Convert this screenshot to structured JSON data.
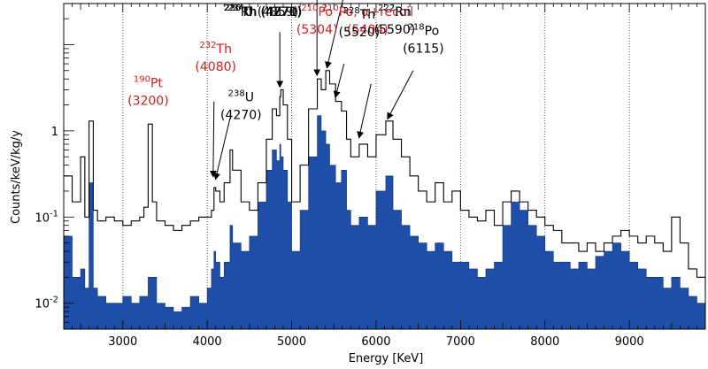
{
  "chart_data": {
    "type": "histogram",
    "xlabel": "Energy [KeV]",
    "ylabel": "Counts/keV/kg/y",
    "xlim": [
      2300,
      9900
    ],
    "ylim": [
      0.005,
      30
    ],
    "yscale": "log",
    "x_ticks": [
      3000,
      4000,
      5000,
      6000,
      7000,
      8000,
      9000
    ],
    "x_tick_labels": [
      "3000",
      "4000",
      "5000",
      "6000",
      "7000",
      "8000",
      "9000"
    ],
    "y_ticks": [
      {
        "value": 1,
        "base": "1",
        "exp": ""
      },
      {
        "value": 0.1,
        "base": "10",
        "exp": "-1"
      },
      {
        "value": 0.01,
        "base": "10",
        "exp": "-2"
      }
    ],
    "vertical_gridlines": [
      3000,
      4000,
      5000,
      6000,
      7000,
      8000,
      9000
    ],
    "colors": {
      "filled": "#1f4ea8",
      "outline": "#000000",
      "red_label": "#cc2222",
      "black_label": "#000000"
    },
    "series": [
      {
        "style": "outline",
        "points": [
          [
            2300,
            0.3
          ],
          [
            2400,
            0.15
          ],
          [
            2500,
            0.5
          ],
          [
            2550,
            0.1
          ],
          [
            2600,
            1.3
          ],
          [
            2650,
            0.12
          ],
          [
            2700,
            0.09
          ],
          [
            2800,
            0.1
          ],
          [
            2900,
            0.09
          ],
          [
            3000,
            0.08
          ],
          [
            3100,
            0.09
          ],
          [
            3200,
            0.1
          ],
          [
            3250,
            0.13
          ],
          [
            3300,
            1.2
          ],
          [
            3350,
            0.15
          ],
          [
            3400,
            0.09
          ],
          [
            3500,
            0.08
          ],
          [
            3600,
            0.07
          ],
          [
            3700,
            0.08
          ],
          [
            3800,
            0.09
          ],
          [
            3900,
            0.1
          ],
          [
            4000,
            0.1
          ],
          [
            4050,
            0.12
          ],
          [
            4080,
            0.22
          ],
          [
            4100,
            0.2
          ],
          [
            4150,
            0.15
          ],
          [
            4200,
            0.25
          ],
          [
            4270,
            0.6
          ],
          [
            4300,
            0.35
          ],
          [
            4400,
            0.15
          ],
          [
            4500,
            0.12
          ],
          [
            4600,
            0.25
          ],
          [
            4700,
            0.8
          ],
          [
            4770,
            1.8
          ],
          [
            4820,
            1.5
          ],
          [
            4859,
            2.5
          ],
          [
            4871,
            3.0
          ],
          [
            4900,
            2.0
          ],
          [
            4950,
            0.8
          ],
          [
            5000,
            0.15
          ],
          [
            5100,
            0.4
          ],
          [
            5200,
            1.8
          ],
          [
            5304,
            4.0
          ],
          [
            5350,
            3.0
          ],
          [
            5404,
            5.0
          ],
          [
            5450,
            3.5
          ],
          [
            5520,
            2.2
          ],
          [
            5590,
            1.7
          ],
          [
            5650,
            0.8
          ],
          [
            5700,
            0.5
          ],
          [
            5800,
            0.7
          ],
          [
            5900,
            0.5
          ],
          [
            6000,
            0.9
          ],
          [
            6115,
            1.3
          ],
          [
            6200,
            0.8
          ],
          [
            6300,
            0.5
          ],
          [
            6400,
            0.3
          ],
          [
            6500,
            0.2
          ],
          [
            6600,
            0.15
          ],
          [
            6700,
            0.25
          ],
          [
            6800,
            0.15
          ],
          [
            6900,
            0.2
          ],
          [
            7000,
            0.12
          ],
          [
            7100,
            0.1
          ],
          [
            7200,
            0.09
          ],
          [
            7300,
            0.12
          ],
          [
            7400,
            0.08
          ],
          [
            7500,
            0.15
          ],
          [
            7600,
            0.2
          ],
          [
            7700,
            0.15
          ],
          [
            7800,
            0.12
          ],
          [
            7900,
            0.1
          ],
          [
            8000,
            0.08
          ],
          [
            8100,
            0.07
          ],
          [
            8200,
            0.05
          ],
          [
            8300,
            0.05
          ],
          [
            8400,
            0.04
          ],
          [
            8500,
            0.05
          ],
          [
            8600,
            0.04
          ],
          [
            8700,
            0.05
          ],
          [
            8800,
            0.06
          ],
          [
            8900,
            0.07
          ],
          [
            9000,
            0.06
          ],
          [
            9100,
            0.05
          ],
          [
            9200,
            0.06
          ],
          [
            9300,
            0.05
          ],
          [
            9400,
            0.04
          ],
          [
            9500,
            0.1
          ],
          [
            9600,
            0.05
          ],
          [
            9700,
            0.025
          ],
          [
            9800,
            0.02
          ],
          [
            9900,
            0.015
          ]
        ]
      },
      {
        "style": "filled",
        "points": [
          [
            2300,
            0.06
          ],
          [
            2400,
            0.02
          ],
          [
            2500,
            0.025
          ],
          [
            2550,
            0.015
          ],
          [
            2600,
            0.25
          ],
          [
            2650,
            0.015
          ],
          [
            2700,
            0.012
          ],
          [
            2800,
            0.01
          ],
          [
            2900,
            0.01
          ],
          [
            3000,
            0.012
          ],
          [
            3100,
            0.01
          ],
          [
            3200,
            0.012
          ],
          [
            3300,
            0.02
          ],
          [
            3400,
            0.01
          ],
          [
            3500,
            0.009
          ],
          [
            3600,
            0.008
          ],
          [
            3700,
            0.009
          ],
          [
            3800,
            0.012
          ],
          [
            3900,
            0.01
          ],
          [
            4000,
            0.015
          ],
          [
            4050,
            0.025
          ],
          [
            4080,
            0.04
          ],
          [
            4100,
            0.03
          ],
          [
            4150,
            0.02
          ],
          [
            4200,
            0.03
          ],
          [
            4270,
            0.08
          ],
          [
            4300,
            0.05
          ],
          [
            4400,
            0.04
          ],
          [
            4500,
            0.06
          ],
          [
            4600,
            0.15
          ],
          [
            4700,
            0.35
          ],
          [
            4770,
            0.6
          ],
          [
            4820,
            0.45
          ],
          [
            4859,
            0.7
          ],
          [
            4871,
            0.5
          ],
          [
            4900,
            0.35
          ],
          [
            4950,
            0.15
          ],
          [
            5000,
            0.04
          ],
          [
            5100,
            0.12
          ],
          [
            5200,
            0.5
          ],
          [
            5304,
            1.5
          ],
          [
            5350,
            1.0
          ],
          [
            5404,
            0.7
          ],
          [
            5450,
            0.4
          ],
          [
            5520,
            0.25
          ],
          [
            5590,
            0.35
          ],
          [
            5650,
            0.12
          ],
          [
            5700,
            0.08
          ],
          [
            5800,
            0.1
          ],
          [
            5900,
            0.08
          ],
          [
            6000,
            0.2
          ],
          [
            6115,
            0.3
          ],
          [
            6200,
            0.12
          ],
          [
            6300,
            0.08
          ],
          [
            6400,
            0.06
          ],
          [
            6500,
            0.05
          ],
          [
            6600,
            0.04
          ],
          [
            6700,
            0.05
          ],
          [
            6800,
            0.04
          ],
          [
            6900,
            0.03
          ],
          [
            7000,
            0.03
          ],
          [
            7100,
            0.025
          ],
          [
            7200,
            0.02
          ],
          [
            7300,
            0.025
          ],
          [
            7400,
            0.03
          ],
          [
            7500,
            0.08
          ],
          [
            7600,
            0.15
          ],
          [
            7700,
            0.12
          ],
          [
            7800,
            0.08
          ],
          [
            7900,
            0.06
          ],
          [
            8000,
            0.04
          ],
          [
            8100,
            0.03
          ],
          [
            8200,
            0.03
          ],
          [
            8300,
            0.025
          ],
          [
            8400,
            0.03
          ],
          [
            8500,
            0.025
          ],
          [
            8600,
            0.035
          ],
          [
            8700,
            0.04
          ],
          [
            8800,
            0.05
          ],
          [
            8900,
            0.04
          ],
          [
            9000,
            0.03
          ],
          [
            9100,
            0.025
          ],
          [
            9200,
            0.02
          ],
          [
            9300,
            0.02
          ],
          [
            9400,
            0.015
          ],
          [
            9500,
            0.02
          ],
          [
            9600,
            0.015
          ],
          [
            9700,
            0.012
          ],
          [
            9800,
            0.01
          ],
          [
            9900,
            0.008
          ]
        ]
      }
    ],
    "annotations": [
      {
        "sup": "190",
        "text": "Pt",
        "line2": "(3200)",
        "color": "red",
        "tx": 3300,
        "ty": 3.2
      },
      {
        "sup": "232",
        "text": "Th",
        "line2": "(4080)",
        "color": "red",
        "tx": 4100,
        "ty": 8
      },
      {
        "sup": "238",
        "text": "U",
        "line2": "(4270)",
        "color": "black",
        "tx": 4400,
        "ty": 2.2
      },
      {
        "sup": "234",
        "text": "U (4859)",
        "line2": "",
        "color": "black",
        "tx": 4660,
        "ty": 100
      },
      {
        "sup": "226",
        "text": "Rn (4871)",
        "line2": "",
        "color": "black",
        "tx": 4660,
        "ty": 48
      },
      {
        "sup": "230",
        "text": "Th (4770)",
        "line2": "",
        "color": "black",
        "tx": 4660,
        "ty": 25
      },
      {
        "sup": "210",
        "text": "Po",
        "line2": "(5304)",
        "color": "red",
        "tx": 5300,
        "ty": 250
      },
      {
        "sup": "210",
        "text": "Po, α+recoil",
        "line2": "(5404)",
        "color": "red",
        "tx": 5900,
        "ty": 185
      },
      {
        "sup": "228",
        "text": "Th",
        "line2": "(5520)",
        "color": "black",
        "tx": 5800,
        "ty": 20
      },
      {
        "sup": "222",
        "text": "Rn",
        "line2": "(5590)",
        "color": "black",
        "tx": 6220,
        "ty": 60
      },
      {
        "sup": "218",
        "text": "Po",
        "line2": "(6115)",
        "color": "black",
        "tx": 6560,
        "ty": 13
      }
    ],
    "arrows": [
      {
        "x1": 4860,
        "y1": 14,
        "x2": 4860,
        "y2": 3.3
      },
      {
        "x1": 4270,
        "y1": 1.4,
        "x2": 4100,
        "y2": 0.28
      },
      {
        "x1": 4080,
        "y1": 2.2,
        "x2": 4070,
        "y2": 0.3
      },
      {
        "x1": 5300,
        "y1": 80,
        "x2": 5300,
        "y2": 4.5
      },
      {
        "x1": 5710,
        "y1": 90,
        "x2": 5420,
        "y2": 5.5
      },
      {
        "x1": 5620,
        "y1": 6,
        "x2": 5520,
        "y2": 2.5
      },
      {
        "x1": 5940,
        "y1": 3.5,
        "x2": 5800,
        "y2": 0.85
      },
      {
        "x1": 6440,
        "y1": 5,
        "x2": 6140,
        "y2": 1.4
      }
    ]
  }
}
